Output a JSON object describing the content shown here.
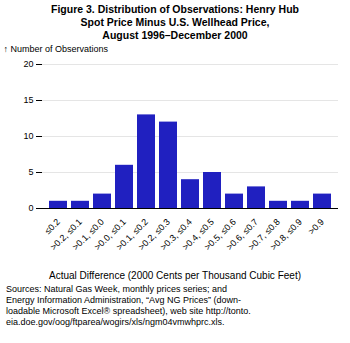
{
  "chart_data": {
    "type": "bar",
    "title": "Figure 3.  Distribution of Observations: Henry Hub\nSpot Price Minus U.S. Wellhead Price,\nAugust 1996–December 2000",
    "ylabel": "Number of Observations",
    "xlabel": "Actual Difference (2000 Cents per Thousand Cubic Feet)",
    "categories": [
      "≤0.2",
      ">0.2, ≤0.1",
      ">0.1, ≤0.0",
      ">0.0, ≤0.1",
      ">0.1, ≤0.2",
      ">0.2, ≤0.3",
      ">0.3, ≤0.4",
      ">0.4, ≤0.5",
      ">0.5, ≤0.6",
      ">0.6, ≤0.7",
      ">0.7, ≤0.8",
      ">0.8, ≤0.9",
      ">0.9"
    ],
    "values": [
      1,
      1,
      2,
      6,
      13,
      12,
      4,
      5,
      2,
      3,
      1,
      1,
      2
    ],
    "color": "#2020c0",
    "ylim": [
      0,
      20
    ],
    "yticks": [
      0,
      5,
      10,
      15,
      20
    ],
    "grid": true,
    "annotations": [
      "Sources:  Natural Gas Week, monthly prices series; and",
      "Energy Information Administration, “Avg NG Prices” (down-",
      "loadable Microsoft Excel® spreadsheet), web site http://tonto.",
      "eia.doe.gov/oog/ftparea/wogirs/xls/ngm04vmwhprc.xls."
    ]
  }
}
